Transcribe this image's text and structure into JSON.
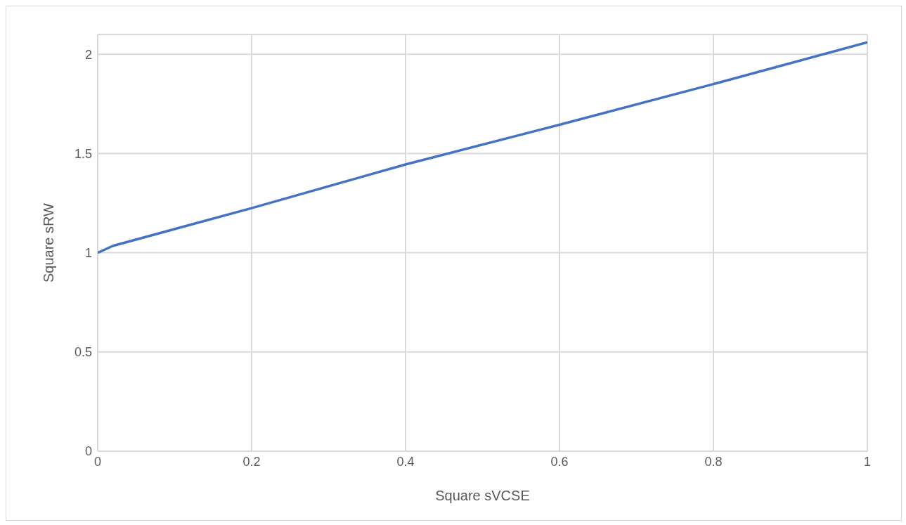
{
  "chart_data": {
    "type": "line",
    "xlabel": "Square sVCSE",
    "ylabel": "Square sRW",
    "x": [
      0,
      0.02,
      0.2,
      0.4,
      0.6,
      0.8,
      1
    ],
    "series": [
      {
        "color": "#4472c4",
        "values": [
          1,
          1.035,
          1.225,
          1.445,
          1.645,
          1.85,
          2.06
        ]
      }
    ],
    "xlim": [
      0,
      1
    ],
    "xticks": [
      0,
      0.2,
      0.4,
      0.6,
      0.8,
      1
    ],
    "ylim": [
      0,
      2.1
    ],
    "yticks": [
      0,
      0.5,
      1,
      1.5,
      2
    ],
    "grid": true,
    "legend": false,
    "marker": "none",
    "line_style": "solid"
  }
}
